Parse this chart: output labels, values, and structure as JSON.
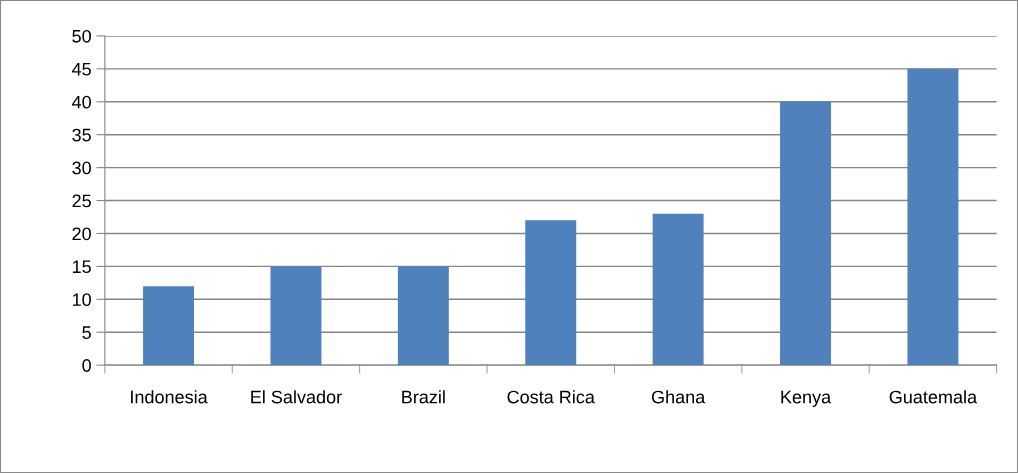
{
  "chart_data": {
    "type": "bar",
    "categories": [
      "Indonesia",
      "El Salvador",
      "Brazil",
      "Costa Rica",
      "Ghana",
      "Kenya",
      "Guatemala"
    ],
    "values": [
      12,
      15,
      15,
      22,
      23,
      40,
      45
    ],
    "color": "#4f81bd",
    "ylim": [
      0,
      50
    ],
    "yticks": [
      0,
      5,
      10,
      15,
      20,
      25,
      30,
      35,
      40,
      45,
      50
    ],
    "grid": "y"
  }
}
